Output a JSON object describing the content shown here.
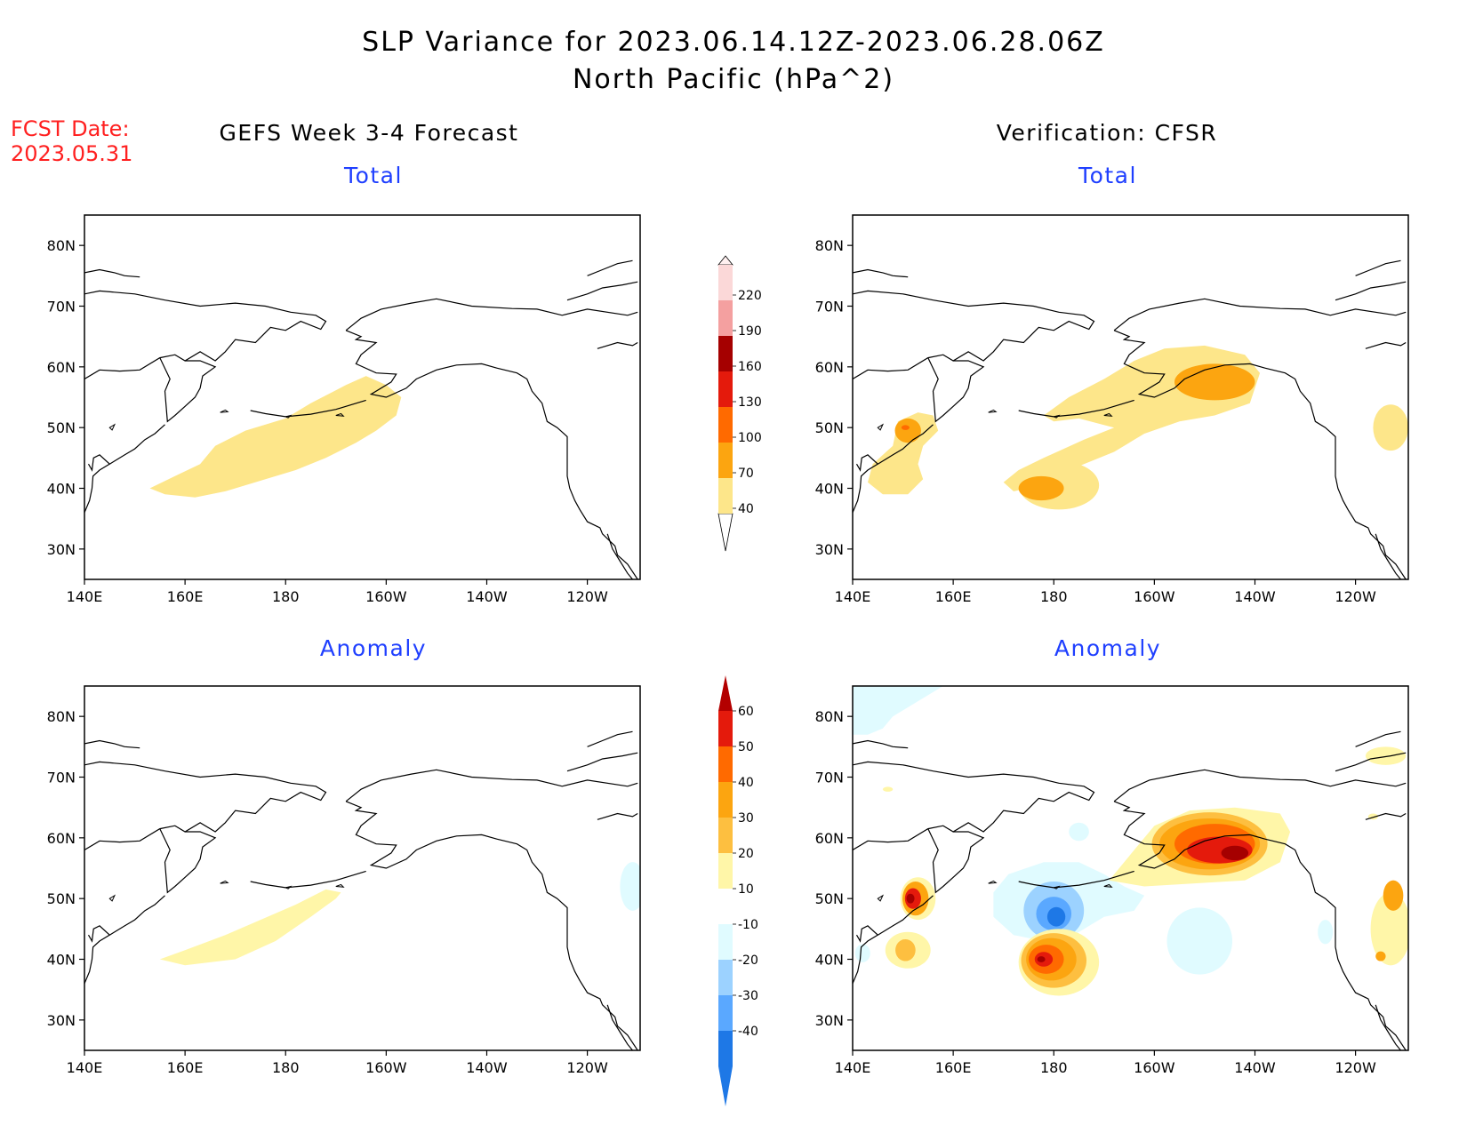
{
  "title_line1": "SLP Variance for 2023.06.14.12Z-2023.06.28.06Z",
  "title_line2": "North Pacific (hPa^2)",
  "fcst_label": "FCST Date:",
  "fcst_date": "2023.05.31",
  "left_header": "GEFS Week 3-4 Forecast",
  "right_header": "Verification: CFSR",
  "panel_titles": {
    "total": "Total",
    "anomaly": "Anomaly"
  },
  "lat_labels": [
    "80N",
    "70N",
    "60N",
    "50N",
    "40N",
    "30N"
  ],
  "lon_labels": [
    "140E",
    "160E",
    "180",
    "160W",
    "140W",
    "120W"
  ],
  "total_colorbar": {
    "levels": [
      "40",
      "70",
      "100",
      "130",
      "160",
      "190",
      "220"
    ],
    "colors": [
      "#fde68a",
      "#fca510",
      "#ff6a00",
      "#e41a0c",
      "#a50000",
      "#f4a0a0",
      "#fbd8d8"
    ]
  },
  "anomaly_colorbar": {
    "levels": [
      "60",
      "50",
      "40",
      "30",
      "20",
      "10",
      "-10",
      "-20",
      "-30",
      "-40"
    ],
    "colors": [
      "#b30000",
      "#e41a0c",
      "#ff6a00",
      "#fca510",
      "#fdbf40",
      "#fff6a8",
      "#ffffff",
      "#e0fbff",
      "#9cd2ff",
      "#5aa8ff",
      "#1e78e6"
    ]
  },
  "colors": {
    "title_text": "#000000",
    "fcst_text": "#ff2020",
    "subtitle_text": "#1f3fff",
    "yellow_light": "#fde68a",
    "yellow_pale": "#fff6a8",
    "orange": "#fca510",
    "orange_dark": "#ff6a00",
    "red": "#e41a0c",
    "dark_red": "#a50000",
    "cyan_light": "#e0fbff",
    "blue_light": "#9cd2ff",
    "blue": "#1e78e6"
  }
}
